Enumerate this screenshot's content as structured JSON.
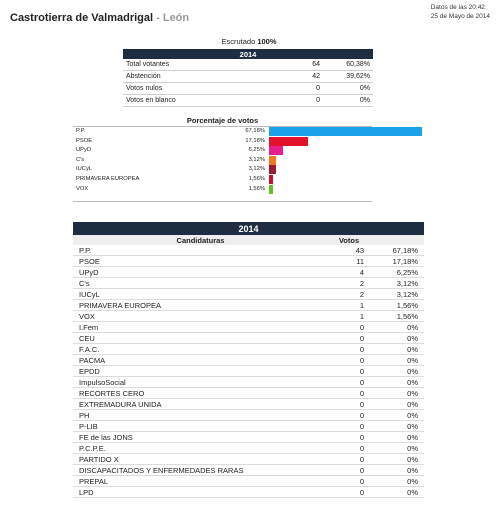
{
  "header": {
    "municipality": "Castrotierra de Valmadrigal",
    "separator": " - ",
    "province": "León"
  },
  "update": {
    "line1": "Datos de las 20:42",
    "line2": "25 de Mayo de 2014"
  },
  "scrutiny": {
    "label": "Escrutado",
    "value": "100%"
  },
  "summary": {
    "year": "2014",
    "rows": [
      {
        "label": "Total votantes",
        "count": "64",
        "pct": "60,38%"
      },
      {
        "label": "Abstención",
        "count": "42",
        "pct": "39,62%"
      },
      {
        "label": "Votos nulos",
        "count": "0",
        "pct": "0%"
      },
      {
        "label": "Votos en blanco",
        "count": "0",
        "pct": "0%"
      }
    ]
  },
  "chart_data": {
    "type": "bar",
    "title": "Porcentaje de votos",
    "orientation": "horizontal",
    "categories": [
      "P.P.",
      "PSOE",
      "UPyD",
      "C's",
      "IUCyL",
      "PRIMAVERA EUROPEA",
      "VOX"
    ],
    "labels": [
      "67,18%",
      "17,18%",
      "6,25%",
      "3,12%",
      "3,12%",
      "1,56%",
      "1,56%"
    ],
    "values": [
      67.18,
      17.18,
      6.25,
      3.12,
      3.12,
      1.56,
      1.56
    ],
    "colors": [
      "#1aa3e8",
      "#e4112d",
      "#e6208a",
      "#f07a20",
      "#9b1b30",
      "#c8102e",
      "#63be21"
    ],
    "xlim": [
      0,
      100
    ]
  },
  "results": {
    "year": "2014",
    "col_party": "Candidaturas",
    "col_votes": "Votos",
    "rows": [
      {
        "name": "P.P.",
        "votes": "43",
        "pct": "67,18%"
      },
      {
        "name": "PSOE",
        "votes": "11",
        "pct": "17,18%"
      },
      {
        "name": "UPyD",
        "votes": "4",
        "pct": "6,25%"
      },
      {
        "name": "C's",
        "votes": "2",
        "pct": "3,12%"
      },
      {
        "name": "IUCyL",
        "votes": "2",
        "pct": "3,12%"
      },
      {
        "name": "PRIMAVERA EUROPEA",
        "votes": "1",
        "pct": "1,56%"
      },
      {
        "name": "VOX",
        "votes": "1",
        "pct": "1,56%"
      },
      {
        "name": "I.Fem",
        "votes": "0",
        "pct": "0%"
      },
      {
        "name": "CEU",
        "votes": "0",
        "pct": "0%"
      },
      {
        "name": "F.A.C.",
        "votes": "0",
        "pct": "0%"
      },
      {
        "name": "PACMA",
        "votes": "0",
        "pct": "0%"
      },
      {
        "name": "EPDD",
        "votes": "0",
        "pct": "0%"
      },
      {
        "name": "ImpulsoSocial",
        "votes": "0",
        "pct": "0%"
      },
      {
        "name": "RECORTES CERO",
        "votes": "0",
        "pct": "0%"
      },
      {
        "name": "EXTREMADURA UNIDA",
        "votes": "0",
        "pct": "0%"
      },
      {
        "name": "PH",
        "votes": "0",
        "pct": "0%"
      },
      {
        "name": "P-LIB",
        "votes": "0",
        "pct": "0%"
      },
      {
        "name": "FE de las JONS",
        "votes": "0",
        "pct": "0%"
      },
      {
        "name": "P.C.P.E.",
        "votes": "0",
        "pct": "0%"
      },
      {
        "name": "PARTIDO X",
        "votes": "0",
        "pct": "0%"
      },
      {
        "name": "DISCAPACITADOS Y ENFERMEDADES RARAS",
        "votes": "0",
        "pct": "0%"
      },
      {
        "name": "PREPAL",
        "votes": "0",
        "pct": "0%"
      },
      {
        "name": "LPD",
        "votes": "0",
        "pct": "0%"
      }
    ]
  }
}
